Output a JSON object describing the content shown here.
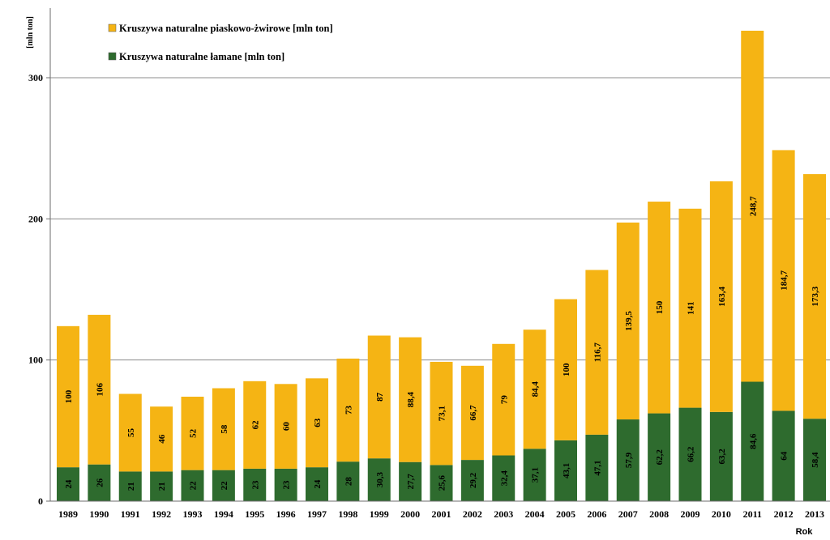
{
  "chart_data": {
    "type": "bar",
    "stacked": true,
    "ylabel": "[mln ton]",
    "xlabel": "Rok",
    "ylim": [
      0,
      340
    ],
    "yticks": [
      0,
      100,
      200,
      300
    ],
    "grid": true,
    "legend_position": "top-left",
    "categories": [
      "1989",
      "1990",
      "1991",
      "1992",
      "1993",
      "1994",
      "1995",
      "1996",
      "1997",
      "1998",
      "1999",
      "2000",
      "2001",
      "2002",
      "2003",
      "2004",
      "2005",
      "2006",
      "2007",
      "2008",
      "2009",
      "2010",
      "2011",
      "2012",
      "2013"
    ],
    "series": [
      {
        "name": "Kruszywa naturalne łamane [mln ton]",
        "color": "#2e6b2e",
        "values": [
          24,
          26,
          21,
          21,
          22,
          22,
          23,
          23,
          24,
          28,
          30.3,
          27.7,
          25.6,
          29.2,
          32.4,
          37.1,
          43.1,
          47.1,
          57.9,
          62.2,
          66.2,
          63.2,
          84.6,
          64,
          58.4
        ],
        "labels": [
          "24",
          "26",
          "21",
          "21",
          "22",
          "22",
          "23",
          "23",
          "24",
          "28",
          "30,3",
          "27,7",
          "25,6",
          "29,2",
          "32,4",
          "37,1",
          "43,1",
          "47,1",
          "57,9",
          "62,2",
          "66,2",
          "63,2",
          "84,6",
          "64",
          "58,4"
        ]
      },
      {
        "name": "Kruszywa naturalne piaskowo-żwirowe [mln ton]",
        "color": "#f5b414",
        "values": [
          100,
          106,
          55,
          46,
          52,
          58,
          62,
          60,
          63,
          73,
          87,
          88.4,
          73.1,
          66.7,
          79,
          84.4,
          100,
          116.7,
          139.5,
          150,
          141,
          163.4,
          248.7,
          184.7,
          173.3
        ],
        "labels": [
          "100",
          "106",
          "55",
          "46",
          "52",
          "58",
          "62",
          "60",
          "63",
          "73",
          "87",
          "88,4",
          "73,1",
          "66,7",
          "79",
          "84,4",
          "100",
          "116,7",
          "139,5",
          "150",
          "141",
          "163,4",
          "248,7",
          "184,7",
          "173,3"
        ]
      }
    ]
  }
}
